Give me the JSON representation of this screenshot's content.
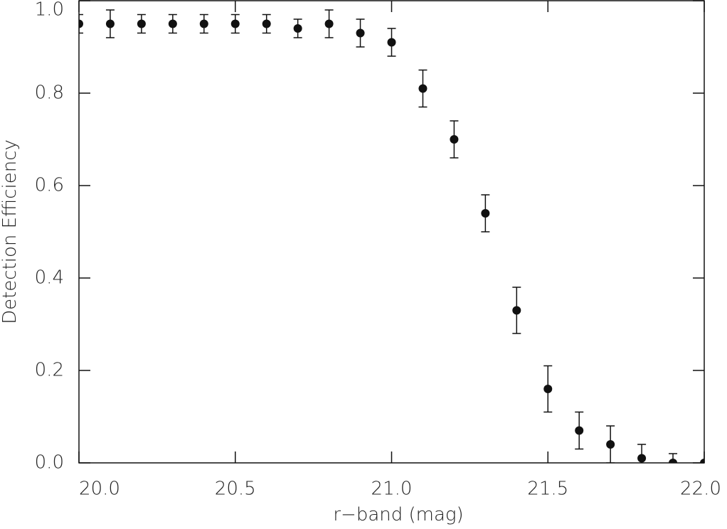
{
  "chart_data": {
    "type": "scatter",
    "xlabel": "r−band (mag)",
    "ylabel": "Detection Efficiency",
    "x": [
      20.0,
      20.1,
      20.2,
      20.3,
      20.4,
      20.5,
      20.6,
      20.7,
      20.8,
      20.9,
      21.0,
      21.1,
      21.2,
      21.3,
      21.4,
      21.5,
      21.6,
      21.7,
      21.8,
      21.9,
      22.0
    ],
    "values": [
      0.95,
      0.95,
      0.95,
      0.95,
      0.95,
      0.95,
      0.95,
      0.94,
      0.95,
      0.93,
      0.91,
      0.81,
      0.7,
      0.54,
      0.33,
      0.16,
      0.07,
      0.04,
      0.01,
      0.0,
      0.0
    ],
    "errors": [
      0.02,
      0.03,
      0.02,
      0.02,
      0.02,
      0.02,
      0.02,
      0.02,
      0.03,
      0.03,
      0.03,
      0.04,
      0.04,
      0.04,
      0.05,
      0.05,
      0.04,
      0.04,
      0.03,
      0.02,
      0.0
    ],
    "color": "#111111",
    "xlim": [
      20.0,
      22.0
    ],
    "ylim": [
      0.0,
      1.0
    ],
    "xticks": [
      {
        "value": 20.0,
        "label": "20.0"
      },
      20.5,
      {
        "value": 21.0,
        "label": "21.0"
      },
      21.5,
      {
        "value": 22.0,
        "label": "22.0"
      }
    ],
    "yticks": [
      {
        "value": 0.0,
        "label": "0.0"
      },
      0.2,
      0.4,
      0.6,
      0.8,
      {
        "value": 1.0,
        "label": "1.0"
      }
    ]
  }
}
